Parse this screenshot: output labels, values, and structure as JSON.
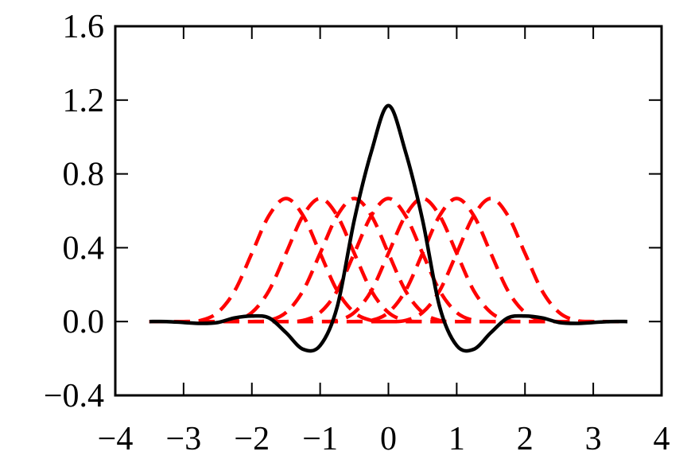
{
  "chart_data": {
    "type": "line",
    "x": [
      -3.5,
      -3.25,
      -3,
      -2.75,
      -2.5,
      -2.25,
      -2,
      -1.75,
      -1.5,
      -1.25,
      -1,
      -0.75,
      -0.5,
      -0.25,
      0,
      0.25,
      0.5,
      0.75,
      1,
      1.25,
      1.5,
      1.75,
      2,
      2.25,
      2.5,
      2.75,
      3,
      3.25,
      3.5
    ],
    "series": [
      {
        "color": "#ff0000",
        "dashed": true,
        "values": [
          0,
          0,
          0,
          0.006,
          0.049,
          0.167,
          0.37,
          0.574,
          0.667,
          0.574,
          0.37,
          0.167,
          0.049,
          0.006,
          0,
          0,
          0,
          0,
          0,
          0,
          0,
          0,
          0,
          0,
          0,
          0,
          0,
          0,
          0
        ]
      },
      {
        "color": "#ff0000",
        "dashed": true,
        "values": [
          0,
          0,
          0,
          0,
          0,
          0.006,
          0.049,
          0.167,
          0.37,
          0.574,
          0.667,
          0.574,
          0.37,
          0.167,
          0.049,
          0.006,
          0,
          0,
          0,
          0,
          0,
          0,
          0,
          0,
          0,
          0,
          0,
          0,
          0
        ]
      },
      {
        "color": "#ff0000",
        "dashed": true,
        "values": [
          0,
          0,
          0,
          0,
          0,
          0,
          0,
          0.006,
          0.049,
          0.167,
          0.37,
          0.574,
          0.667,
          0.574,
          0.37,
          0.167,
          0.049,
          0.006,
          0,
          0,
          0,
          0,
          0,
          0,
          0,
          0,
          0,
          0,
          0
        ]
      },
      {
        "color": "#ff0000",
        "dashed": true,
        "values": [
          0,
          0,
          0,
          0,
          0,
          0,
          0,
          0,
          0,
          0.006,
          0.049,
          0.167,
          0.37,
          0.574,
          0.667,
          0.574,
          0.37,
          0.167,
          0.049,
          0.006,
          0,
          0,
          0,
          0,
          0,
          0,
          0,
          0,
          0
        ]
      },
      {
        "color": "#ff0000",
        "dashed": true,
        "values": [
          0,
          0,
          0,
          0,
          0,
          0,
          0,
          0,
          0,
          0,
          0,
          0.006,
          0.049,
          0.167,
          0.37,
          0.574,
          0.667,
          0.574,
          0.37,
          0.167,
          0.049,
          0.006,
          0,
          0,
          0,
          0,
          0,
          0,
          0
        ]
      },
      {
        "color": "#ff0000",
        "dashed": true,
        "values": [
          0,
          0,
          0,
          0,
          0,
          0,
          0,
          0,
          0,
          0,
          0,
          0,
          0,
          0.006,
          0.049,
          0.167,
          0.37,
          0.574,
          0.667,
          0.574,
          0.37,
          0.167,
          0.049,
          0.006,
          0,
          0,
          0,
          0,
          0
        ]
      },
      {
        "color": "#ff0000",
        "dashed": true,
        "values": [
          0,
          0,
          0,
          0,
          0,
          0,
          0,
          0,
          0,
          0,
          0,
          0,
          0,
          0,
          0,
          0.006,
          0.049,
          0.167,
          0.37,
          0.574,
          0.667,
          0.574,
          0.37,
          0.167,
          0.049,
          0.006,
          0,
          0,
          0
        ]
      },
      {
        "color": "#000000",
        "dashed": false,
        "values": [
          0,
          0,
          -0.005,
          -0.01,
          -0.005,
          0.02,
          0.03,
          0.02,
          -0.06,
          -0.15,
          -0.13,
          0.08,
          0.55,
          0.92,
          1.17,
          0.92,
          0.55,
          0.08,
          -0.13,
          -0.15,
          -0.06,
          0.02,
          0.03,
          0.02,
          -0.005,
          -0.01,
          -0.005,
          0,
          0
        ]
      }
    ],
    "xlim": [
      -4,
      4
    ],
    "xticks": [
      {
        "value": -4,
        "label": "−4"
      },
      {
        "value": -3,
        "label": "−3"
      },
      {
        "value": -2,
        "label": "−2"
      },
      {
        "value": -1,
        "label": "−1"
      },
      0,
      1,
      2,
      3,
      4
    ],
    "ylim": [
      -0.4,
      1.6
    ],
    "yticks": [
      {
        "value": -0.4,
        "label": "−0.4"
      },
      {
        "value": 0,
        "label": "0.0"
      },
      0.4,
      0.8,
      1.2,
      1.6
    ],
    "grid": false
  }
}
